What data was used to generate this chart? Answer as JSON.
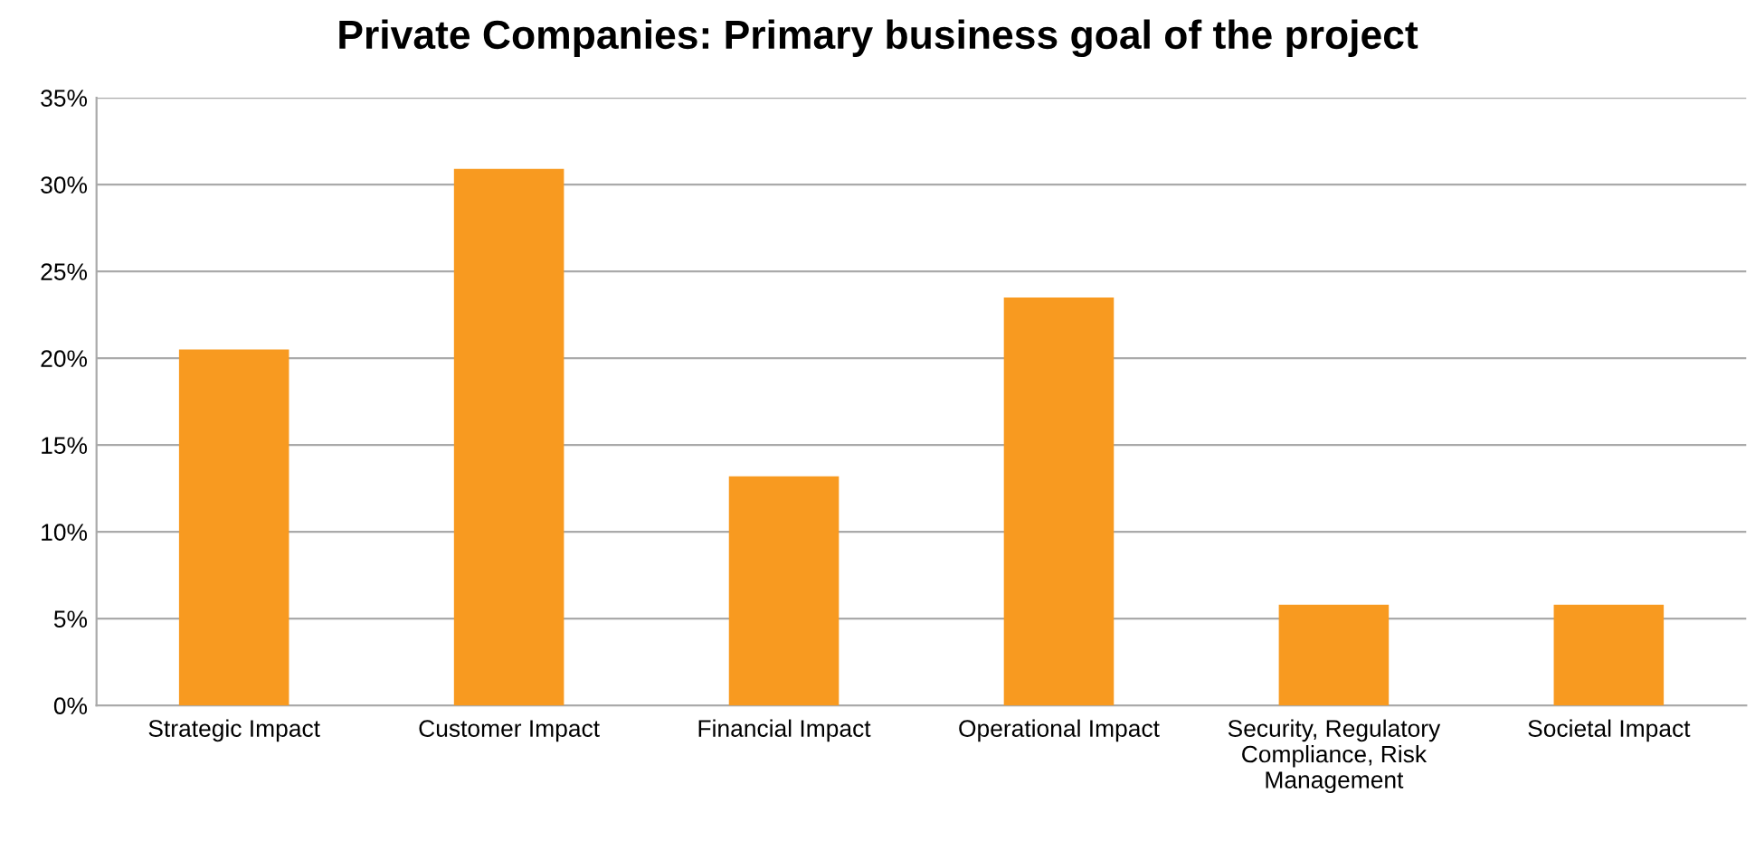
{
  "chart_data": {
    "type": "bar",
    "title": "Private Companies: Primary business goal of the project",
    "categories": [
      "Strategic Impact",
      "Customer Impact",
      "Financial Impact",
      "Operational Impact",
      "Security, Regulatory Compliance, Risk Management",
      "Societal Impact"
    ],
    "values": [
      20.5,
      30.9,
      13.2,
      23.5,
      5.8,
      5.8
    ],
    "color": "#f89a20",
    "ylim": [
      0,
      35
    ],
    "yticks": [
      {
        "value": 0,
        "label": "0%"
      },
      {
        "value": 5,
        "label": "5%"
      },
      {
        "value": 10,
        "label": "10%"
      },
      {
        "value": 15,
        "label": "15%"
      },
      {
        "value": 20,
        "label": "20%"
      },
      {
        "value": 25,
        "label": "25%"
      },
      {
        "value": 30,
        "label": "30%"
      },
      {
        "value": 35,
        "label": "35%"
      }
    ],
    "grid": "y"
  }
}
